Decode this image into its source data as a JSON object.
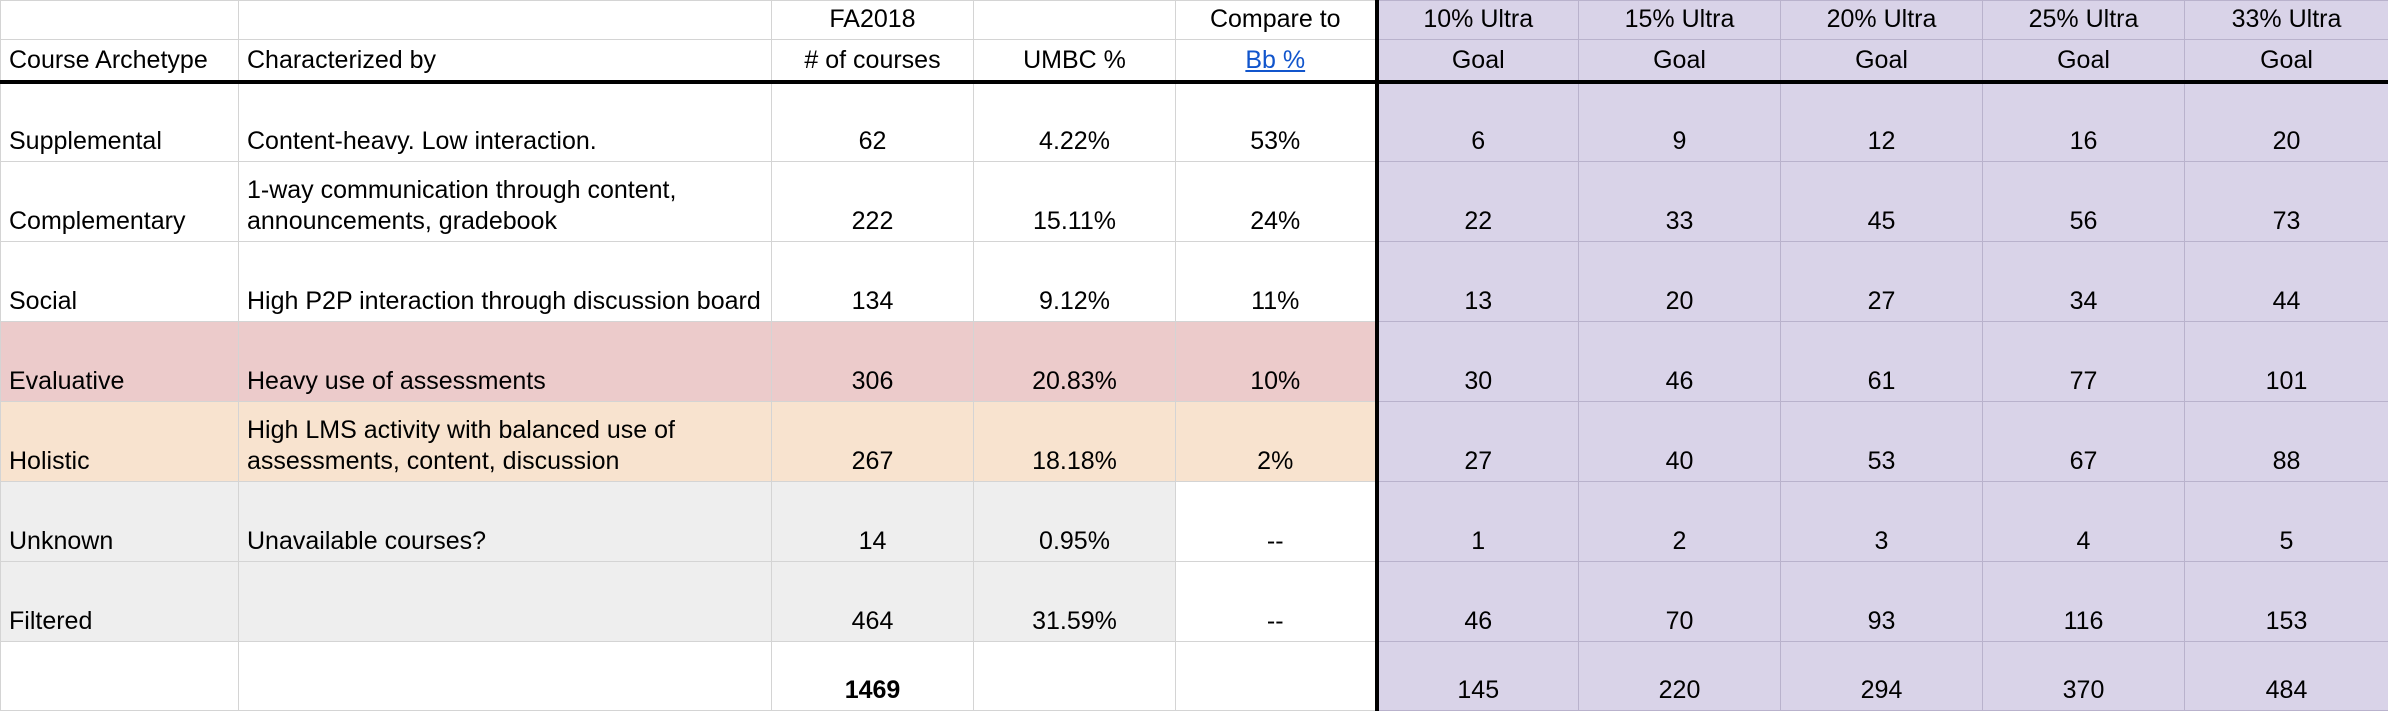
{
  "header": {
    "top": {
      "fa": "FA2018",
      "compare": "Compare to",
      "ultra": [
        "10% Ultra",
        "15% Ultra",
        "20% Ultra",
        "25% Ultra",
        "33% Ultra"
      ]
    },
    "bottom": {
      "archetype": "Course Archetype",
      "characterized": "Characterized by",
      "count": "# of courses",
      "umbc": "UMBC %",
      "bb": "Bb %",
      "goal": "Goal"
    }
  },
  "rows": [
    {
      "archetype": "Supplemental",
      "desc": "Content-heavy. Low interaction.",
      "count": "62",
      "umbc": "4.22%",
      "bb": "53%",
      "goals": [
        "6",
        "9",
        "12",
        "16",
        "20"
      ],
      "style": "plain"
    },
    {
      "archetype": "Complementary",
      "desc": "1-way communication through content, announcements, gradebook",
      "count": "222",
      "umbc": "15.11%",
      "bb": "24%",
      "goals": [
        "22",
        "33",
        "45",
        "56",
        "73"
      ],
      "style": "plain"
    },
    {
      "archetype": "Social",
      "desc": "High P2P interaction through discussion board",
      "count": "134",
      "umbc": "9.12%",
      "bb": "11%",
      "goals": [
        "13",
        "20",
        "27",
        "34",
        "44"
      ],
      "style": "plain"
    },
    {
      "archetype": "Evaluative",
      "desc": "Heavy use of assessments",
      "count": "306",
      "umbc": "20.83%",
      "bb": "10%",
      "goals": [
        "30",
        "46",
        "61",
        "77",
        "101"
      ],
      "style": "pink"
    },
    {
      "archetype": "Holistic",
      "desc": "High LMS activity with balanced use of assessments, content, discussion",
      "count": "267",
      "umbc": "18.18%",
      "bb": "2%",
      "goals": [
        "27",
        "40",
        "53",
        "67",
        "88"
      ],
      "style": "peach"
    },
    {
      "archetype": "Unknown",
      "desc": "Unavailable courses?",
      "count": "14",
      "umbc": "0.95%",
      "bb": "--",
      "goals": [
        "1",
        "2",
        "3",
        "4",
        "5"
      ],
      "style": "grey"
    },
    {
      "archetype": "Filtered",
      "desc": "",
      "count": "464",
      "umbc": "31.59%",
      "bb": "--",
      "goals": [
        "46",
        "70",
        "93",
        "116",
        "153"
      ],
      "style": "grey"
    }
  ],
  "total": {
    "count": "1469",
    "goals": [
      "145",
      "220",
      "294",
      "370",
      "484"
    ]
  }
}
